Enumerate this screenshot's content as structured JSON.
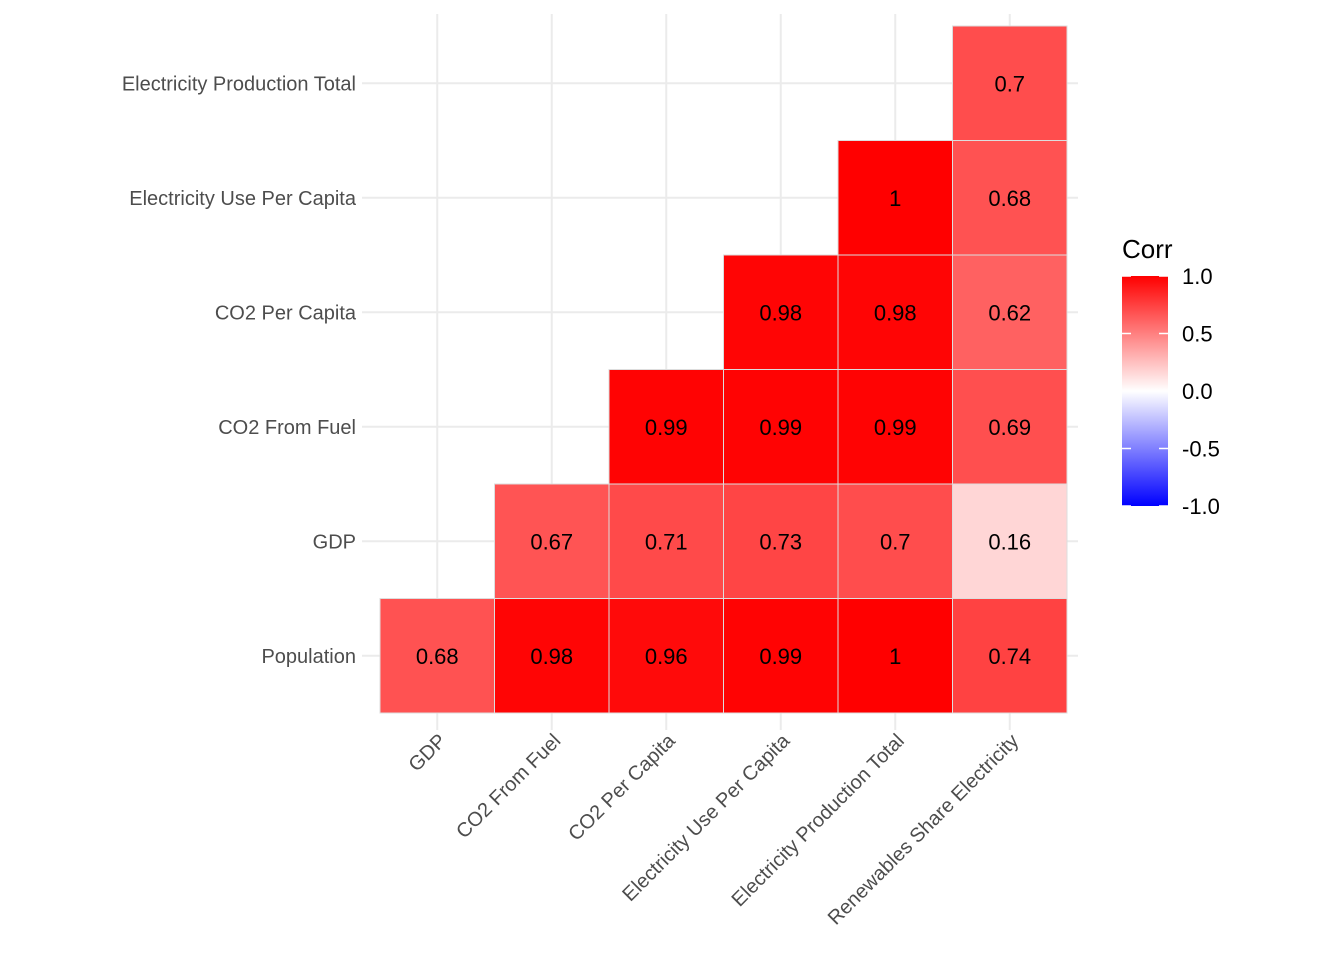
{
  "chart_data": {
    "type": "heatmap",
    "x_categories": [
      "GDP",
      "CO2 From Fuel",
      "CO2 Per Capita",
      "Electricity Use Per Capita",
      "Electricity Production Total",
      "Renewables Share Electricity"
    ],
    "y_categories": [
      "Population",
      "GDP",
      "CO2 From Fuel",
      "CO2 Per Capita",
      "Electricity Use Per Capita",
      "Electricity Production Total"
    ],
    "cells": [
      {
        "x": "GDP",
        "y": "Population",
        "value": 0.68,
        "label": "0.68"
      },
      {
        "x": "CO2 From Fuel",
        "y": "Population",
        "value": 0.98,
        "label": "0.98"
      },
      {
        "x": "CO2 Per Capita",
        "y": "Population",
        "value": 0.96,
        "label": "0.96"
      },
      {
        "x": "Electricity Use Per Capita",
        "y": "Population",
        "value": 0.99,
        "label": "0.99"
      },
      {
        "x": "Electricity Production Total",
        "y": "Population",
        "value": 1,
        "label": "1"
      },
      {
        "x": "Renewables Share Electricity",
        "y": "Population",
        "value": 0.74,
        "label": "0.74"
      },
      {
        "x": "CO2 From Fuel",
        "y": "GDP",
        "value": 0.67,
        "label": "0.67"
      },
      {
        "x": "CO2 Per Capita",
        "y": "GDP",
        "value": 0.71,
        "label": "0.71"
      },
      {
        "x": "Electricity Use Per Capita",
        "y": "GDP",
        "value": 0.73,
        "label": "0.73"
      },
      {
        "x": "Electricity Production Total",
        "y": "GDP",
        "value": 0.7,
        "label": "0.7"
      },
      {
        "x": "Renewables Share Electricity",
        "y": "GDP",
        "value": 0.16,
        "label": "0.16"
      },
      {
        "x": "CO2 Per Capita",
        "y": "CO2 From Fuel",
        "value": 0.99,
        "label": "0.99"
      },
      {
        "x": "Electricity Use Per Capita",
        "y": "CO2 From Fuel",
        "value": 0.99,
        "label": "0.99"
      },
      {
        "x": "Electricity Production Total",
        "y": "CO2 From Fuel",
        "value": 0.99,
        "label": "0.99"
      },
      {
        "x": "Renewables Share Electricity",
        "y": "CO2 From Fuel",
        "value": 0.69,
        "label": "0.69"
      },
      {
        "x": "Electricity Use Per Capita",
        "y": "CO2 Per Capita",
        "value": 0.98,
        "label": "0.98"
      },
      {
        "x": "Electricity Production Total",
        "y": "CO2 Per Capita",
        "value": 0.98,
        "label": "0.98"
      },
      {
        "x": "Renewables Share Electricity",
        "y": "CO2 Per Capita",
        "value": 0.62,
        "label": "0.62"
      },
      {
        "x": "Electricity Production Total",
        "y": "Electricity Use Per Capita",
        "value": 1,
        "label": "1"
      },
      {
        "x": "Renewables Share Electricity",
        "y": "Electricity Use Per Capita",
        "value": 0.68,
        "label": "0.68"
      },
      {
        "x": "Renewables Share Electricity",
        "y": "Electricity Production Total",
        "value": 0.7,
        "label": "0.7"
      }
    ],
    "legend": {
      "title": "Corr",
      "ticks": [
        1.0,
        0.5,
        0.0,
        -0.5,
        -1.0
      ],
      "tick_labels": [
        "1.0",
        "0.5",
        "0.0",
        "-0.5",
        "-1.0"
      ],
      "limits": [
        -1,
        1
      ],
      "colors": {
        "low": "#0000ff",
        "mid": "#ffffff",
        "high": "#ff0000"
      }
    },
    "grid": true,
    "legend_position": "right"
  }
}
